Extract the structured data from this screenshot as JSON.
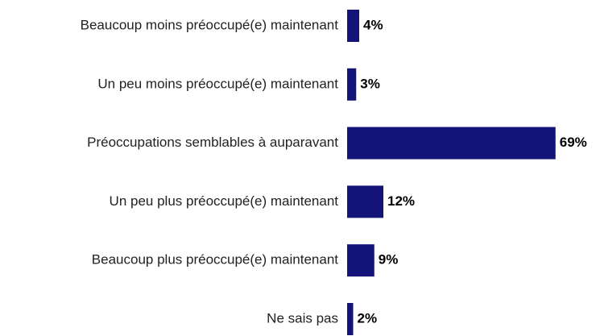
{
  "chart_data": {
    "type": "hbar",
    "categories": [
      "Beaucoup moins préoccupé(e) maintenant",
      "Un peu moins préoccupé(e) maintenant",
      "Préoccupations semblables à auparavant",
      "Un peu plus préoccupé(e) maintenant",
      "Beaucoup plus préoccupé(e) maintenant",
      "Ne sais pas"
    ],
    "values": [
      4,
      3,
      69,
      12,
      9,
      2
    ],
    "value_labels": [
      "4%",
      "3%",
      "69%",
      "12%",
      "9%",
      "2%"
    ],
    "color": "#141478"
  }
}
